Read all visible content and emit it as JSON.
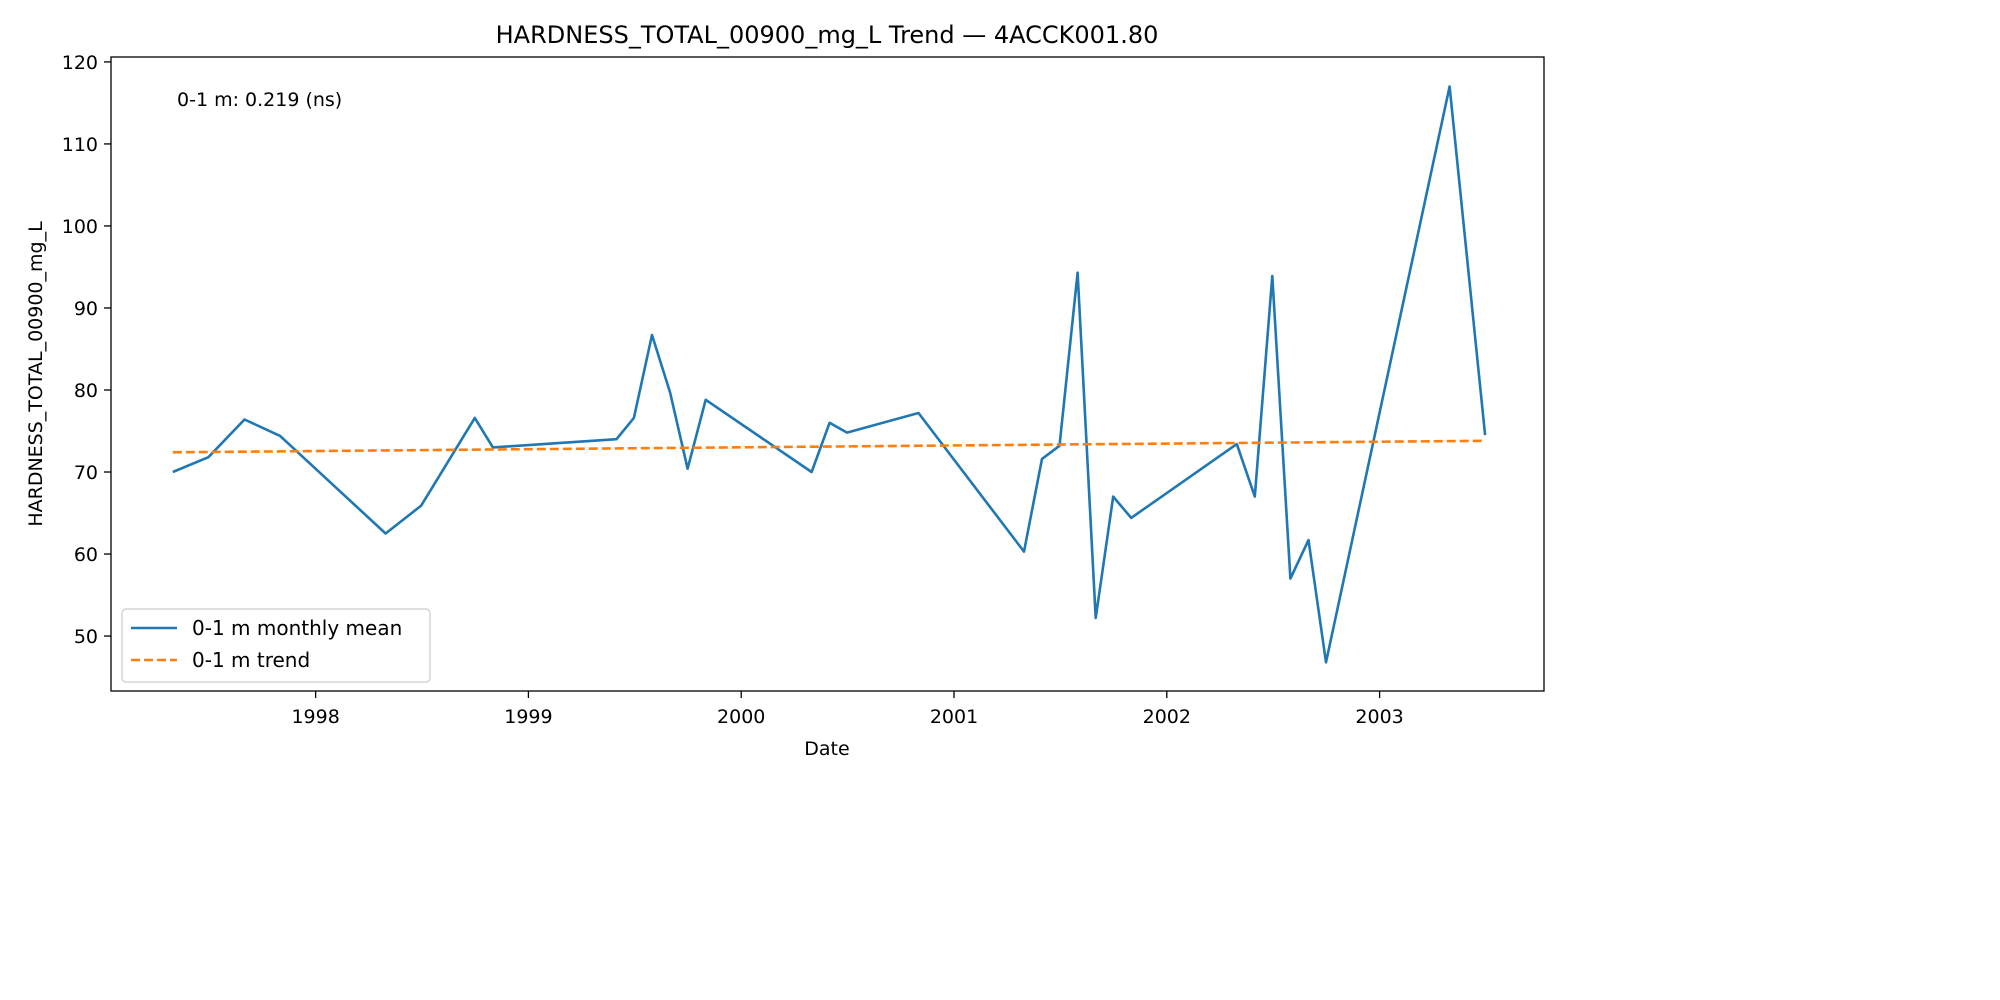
{
  "chart_data": {
    "type": "line",
    "title": "HARDNESS_TOTAL_00900_mg_L Trend — 4ACCK001.80",
    "xlabel": "Date",
    "ylabel": "HARDNESS_TOTAL_00900_mg_L",
    "x_ticks": [
      "1998",
      "1999",
      "2000",
      "2001",
      "2002",
      "2003"
    ],
    "y_ticks": [
      50,
      60,
      70,
      80,
      90,
      100,
      110,
      120
    ],
    "xlim": [
      "1997-01-15",
      "2003-10-10"
    ],
    "ylim": [
      43.3,
      120.6
    ],
    "grid": false,
    "legend_position": "lower-left",
    "annotation": "0-1 m: 0.219 (ns)",
    "series": [
      {
        "name": "0-1 m monthly mean",
        "color": "#1f77b4",
        "style": "solid",
        "points": [
          [
            "1997-05-01",
            70.0
          ],
          [
            "1997-07-01",
            71.8
          ],
          [
            "1997-09-01",
            76.4
          ],
          [
            "1997-11-01",
            74.4
          ],
          [
            "1998-05-01",
            62.5
          ],
          [
            "1998-07-01",
            65.9
          ],
          [
            "1998-10-01",
            76.6
          ],
          [
            "1998-11-01",
            73.0
          ],
          [
            "1999-06-01",
            74.0
          ],
          [
            "1999-07-01",
            76.6
          ],
          [
            "1999-08-01",
            86.7
          ],
          [
            "1999-09-01",
            79.7
          ],
          [
            "1999-10-01",
            70.4
          ],
          [
            "1999-11-01",
            78.8
          ],
          [
            "2000-05-01",
            70.0
          ],
          [
            "2000-06-01",
            76.0
          ],
          [
            "2000-07-01",
            74.8
          ],
          [
            "2000-11-01",
            77.2
          ],
          [
            "2001-05-01",
            60.3
          ],
          [
            "2001-06-01",
            71.6
          ],
          [
            "2001-07-01",
            73.2
          ],
          [
            "2001-08-01",
            94.3
          ],
          [
            "2001-09-01",
            52.2
          ],
          [
            "2001-10-01",
            67.0
          ],
          [
            "2001-11-01",
            64.4
          ],
          [
            "2002-05-01",
            73.4
          ],
          [
            "2002-06-01",
            67.0
          ],
          [
            "2002-07-01",
            93.9
          ],
          [
            "2002-08-01",
            57.0
          ],
          [
            "2002-09-01",
            61.7
          ],
          [
            "2002-10-01",
            46.8
          ],
          [
            "2003-05-01",
            117.0
          ],
          [
            "2003-07-01",
            74.5
          ]
        ]
      },
      {
        "name": "0-1 m trend",
        "color": "#ff7f0e",
        "style": "dashed",
        "points": [
          [
            "1997-05-01",
            72.4
          ],
          [
            "2003-07-01",
            73.8
          ]
        ]
      }
    ]
  }
}
